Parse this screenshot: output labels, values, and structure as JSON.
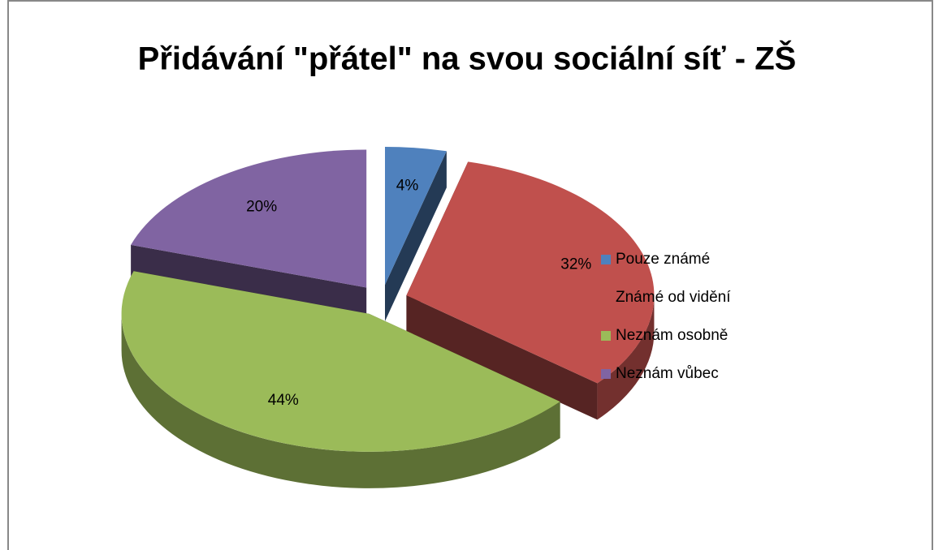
{
  "chart_data": {
    "type": "pie",
    "title": "Přidávání \"přátel\" na svou sociální síť - ZŠ",
    "categories": [
      "Pouze známé",
      "Známé od vidění",
      "Neznám osobně",
      "Neznám vůbec"
    ],
    "values": [
      4,
      32,
      44,
      20
    ],
    "value_labels": [
      "4%",
      "32%",
      "44%",
      "20%"
    ],
    "colors": [
      "#4f81bd",
      "#c0504d",
      "#9bbb59",
      "#8064a2"
    ],
    "legend": "right"
  }
}
